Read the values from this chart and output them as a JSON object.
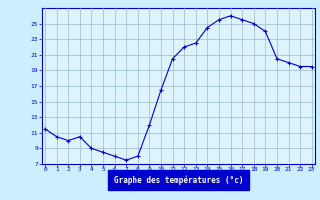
{
  "hours": [
    0,
    1,
    2,
    3,
    4,
    5,
    6,
    7,
    8,
    9,
    10,
    11,
    12,
    13,
    14,
    15,
    16,
    17,
    18,
    19,
    20,
    21,
    22,
    23
  ],
  "temps": [
    11.5,
    10.5,
    10.0,
    10.5,
    9.0,
    8.5,
    8.0,
    7.5,
    8.0,
    12.0,
    16.5,
    20.5,
    22.0,
    22.5,
    24.5,
    25.5,
    26.0,
    25.5,
    25.0,
    24.0,
    20.5,
    20.0,
    19.5,
    19.5
  ],
  "xlabel": "Graphe des températures (°c)",
  "xlim": [
    -0.3,
    23.3
  ],
  "ylim": [
    7,
    27
  ],
  "yticks": [
    7,
    9,
    11,
    13,
    15,
    17,
    19,
    21,
    23,
    25
  ],
  "ytick_labels": [
    "7",
    "9",
    "11",
    "13",
    "15",
    "17",
    "19",
    "21",
    "23",
    "25"
  ],
  "xticks": [
    0,
    1,
    2,
    3,
    4,
    5,
    6,
    7,
    8,
    9,
    10,
    11,
    12,
    13,
    14,
    15,
    16,
    17,
    18,
    19,
    20,
    21,
    22,
    23
  ],
  "line_color": "#0000cc",
  "marker": "+",
  "bg_color": "#cceeff",
  "plot_bg_color": "#ddf4ff",
  "grid_color": "#99bbcc",
  "tick_label_color": "#0000cc",
  "xlabel_bg": "#0000cc",
  "xlabel_fg": "#ffffff"
}
